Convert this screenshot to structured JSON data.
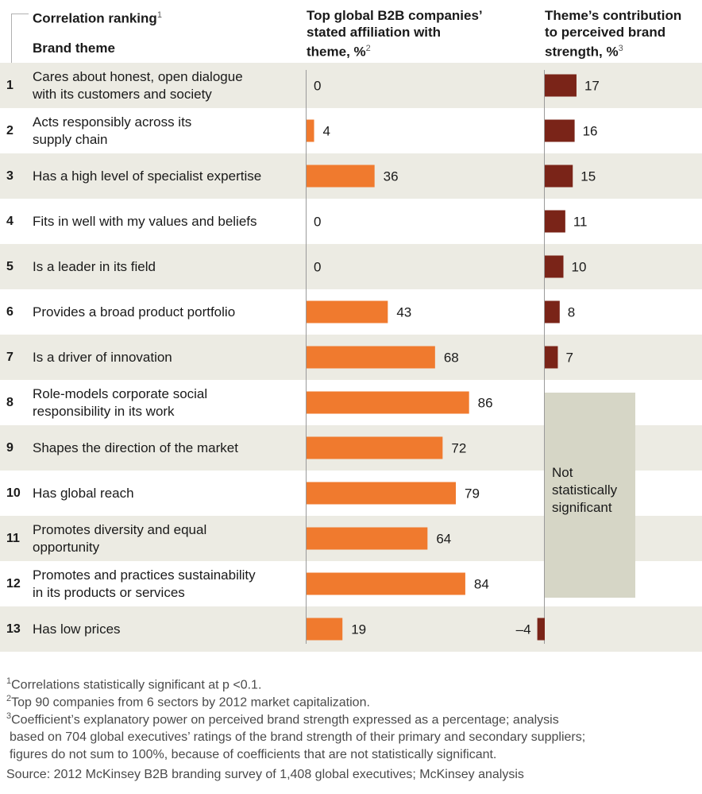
{
  "headers": {
    "col1_line1": "Correlation ranking",
    "col1_sup": "1",
    "col1_line2": "Brand theme",
    "col2_line1": "Top global B2B companies’",
    "col2_line2": "stated affiliation with",
    "col2_line3": "theme, %",
    "col2_sup": "2",
    "col3_line1": "Theme’s contribution",
    "col3_line2": "to perceived brand",
    "col3_line3": "strength, %",
    "col3_sup": "3"
  },
  "rows": [
    {
      "rank": "1",
      "theme_l1": "Cares about honest, open dialogue",
      "theme_l2": "with its customers and society"
    },
    {
      "rank": "2",
      "theme_l1": "Acts responsibly across its",
      "theme_l2": "supply chain"
    },
    {
      "rank": "3",
      "theme_l1": "Has a high level of specialist expertise",
      "theme_l2": ""
    },
    {
      "rank": "4",
      "theme_l1": "Fits in well with my values and beliefs",
      "theme_l2": ""
    },
    {
      "rank": "5",
      "theme_l1": "Is a leader in its field",
      "theme_l2": ""
    },
    {
      "rank": "6",
      "theme_l1": "Provides a broad product portfolio",
      "theme_l2": ""
    },
    {
      "rank": "7",
      "theme_l1": "Is a driver of innovation",
      "theme_l2": ""
    },
    {
      "rank": "8",
      "theme_l1": "Role-models corporate social",
      "theme_l2": "responsibility in its work"
    },
    {
      "rank": "9",
      "theme_l1": "Shapes the direction of the market",
      "theme_l2": ""
    },
    {
      "rank": "10",
      "theme_l1": "Has global reach",
      "theme_l2": ""
    },
    {
      "rank": "11",
      "theme_l1": "Promotes diversity and equal",
      "theme_l2": "opportunity"
    },
    {
      "rank": "12",
      "theme_l1": "Promotes and practices sustainability",
      "theme_l2": "in its products or services"
    },
    {
      "rank": "13",
      "theme_l1": "Has low prices",
      "theme_l2": ""
    }
  ],
  "not_significant": {
    "l1": "Not",
    "l2": "statistically",
    "l3": "significant"
  },
  "chart_data": {
    "type": "bar",
    "categories": [
      "Cares about honest, open dialogue with its customers and society",
      "Acts responsibly across its supply chain",
      "Has a high level of specialist expertise",
      "Fits in well with my values and beliefs",
      "Is a leader in its field",
      "Provides a broad product portfolio",
      "Is a driver of innovation",
      "Role-models corporate social responsibility in its work",
      "Shapes the direction of the market",
      "Has global reach",
      "Promotes diversity and equal opportunity",
      "Promotes and practices sustainability in its products or services",
      "Has low prices"
    ],
    "series": [
      {
        "name": "Top global B2B companies’ stated affiliation with theme, %",
        "color": "#f07a2e",
        "values": [
          0,
          4,
          36,
          0,
          0,
          43,
          68,
          86,
          72,
          79,
          64,
          84,
          19
        ],
        "labels": [
          "0",
          "4",
          "36",
          "0",
          "0",
          "43",
          "68",
          "86",
          "72",
          "79",
          "64",
          "84",
          "19"
        ]
      },
      {
        "name": "Theme’s contribution to perceived brand strength, %",
        "color": "#7a2418",
        "values": [
          17,
          16,
          15,
          11,
          10,
          8,
          7,
          null,
          null,
          null,
          null,
          null,
          -4
        ],
        "labels": [
          "17",
          "16",
          "15",
          "11",
          "10",
          "8",
          "7",
          "",
          "",
          "",
          "",
          "",
          "–4"
        ]
      }
    ],
    "annotations": [
      "Not statistically significant"
    ]
  },
  "footnotes": {
    "f1_sup": "1",
    "f1": "Correlations statistically significant at p <0.1.",
    "f2_sup": "2",
    "f2": "Top 90 companies from 6 sectors by 2012 market capitalization.",
    "f3_sup": "3",
    "f3_l1": "Coefficient’s explanatory power on perceived brand strength expressed as a percentage; analysis",
    "f3_l2": "based on 704 global executives’ ratings of the brand strength of their primary and secondary suppliers;",
    "f3_l3": "figures do not sum to 100%, because of coefficients that are not statistically significant.",
    "source": "Source: 2012 McKinsey B2B branding survey of 1,408 global executives; McKinsey analysis"
  }
}
